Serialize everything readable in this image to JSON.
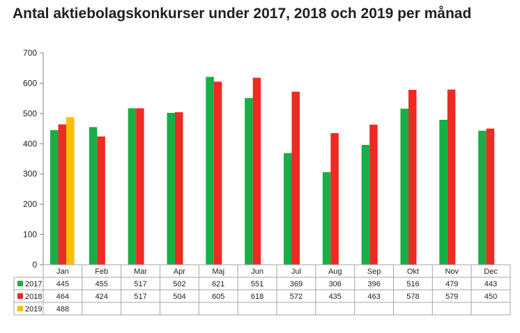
{
  "chart_data": {
    "type": "bar",
    "title": "Antal aktiebolagskonkurser under 2017, 2018 och 2019 per månad",
    "xlabel": "",
    "ylabel": "",
    "ylim": [
      0,
      700
    ],
    "yticks": [
      0,
      100,
      200,
      300,
      400,
      500,
      600,
      700
    ],
    "grid": false,
    "legend_position": "table-left",
    "categories": [
      "Jan",
      "Feb",
      "Mar",
      "Apr",
      "Maj",
      "Jun",
      "Jul",
      "Aug",
      "Sep",
      "Okt",
      "Nov",
      "Dec"
    ],
    "series": [
      {
        "name": "2017",
        "color": "#1aae46",
        "values": [
          445,
          455,
          517,
          502,
          621,
          551,
          369,
          306,
          396,
          516,
          479,
          443
        ]
      },
      {
        "name": "2018",
        "color": "#ee2a24",
        "values": [
          464,
          424,
          517,
          504,
          605,
          618,
          572,
          435,
          463,
          578,
          579,
          450
        ]
      },
      {
        "name": "2019",
        "color": "#ffc000",
        "values": [
          488,
          null,
          null,
          null,
          null,
          null,
          null,
          null,
          null,
          null,
          null,
          null
        ]
      }
    ]
  }
}
